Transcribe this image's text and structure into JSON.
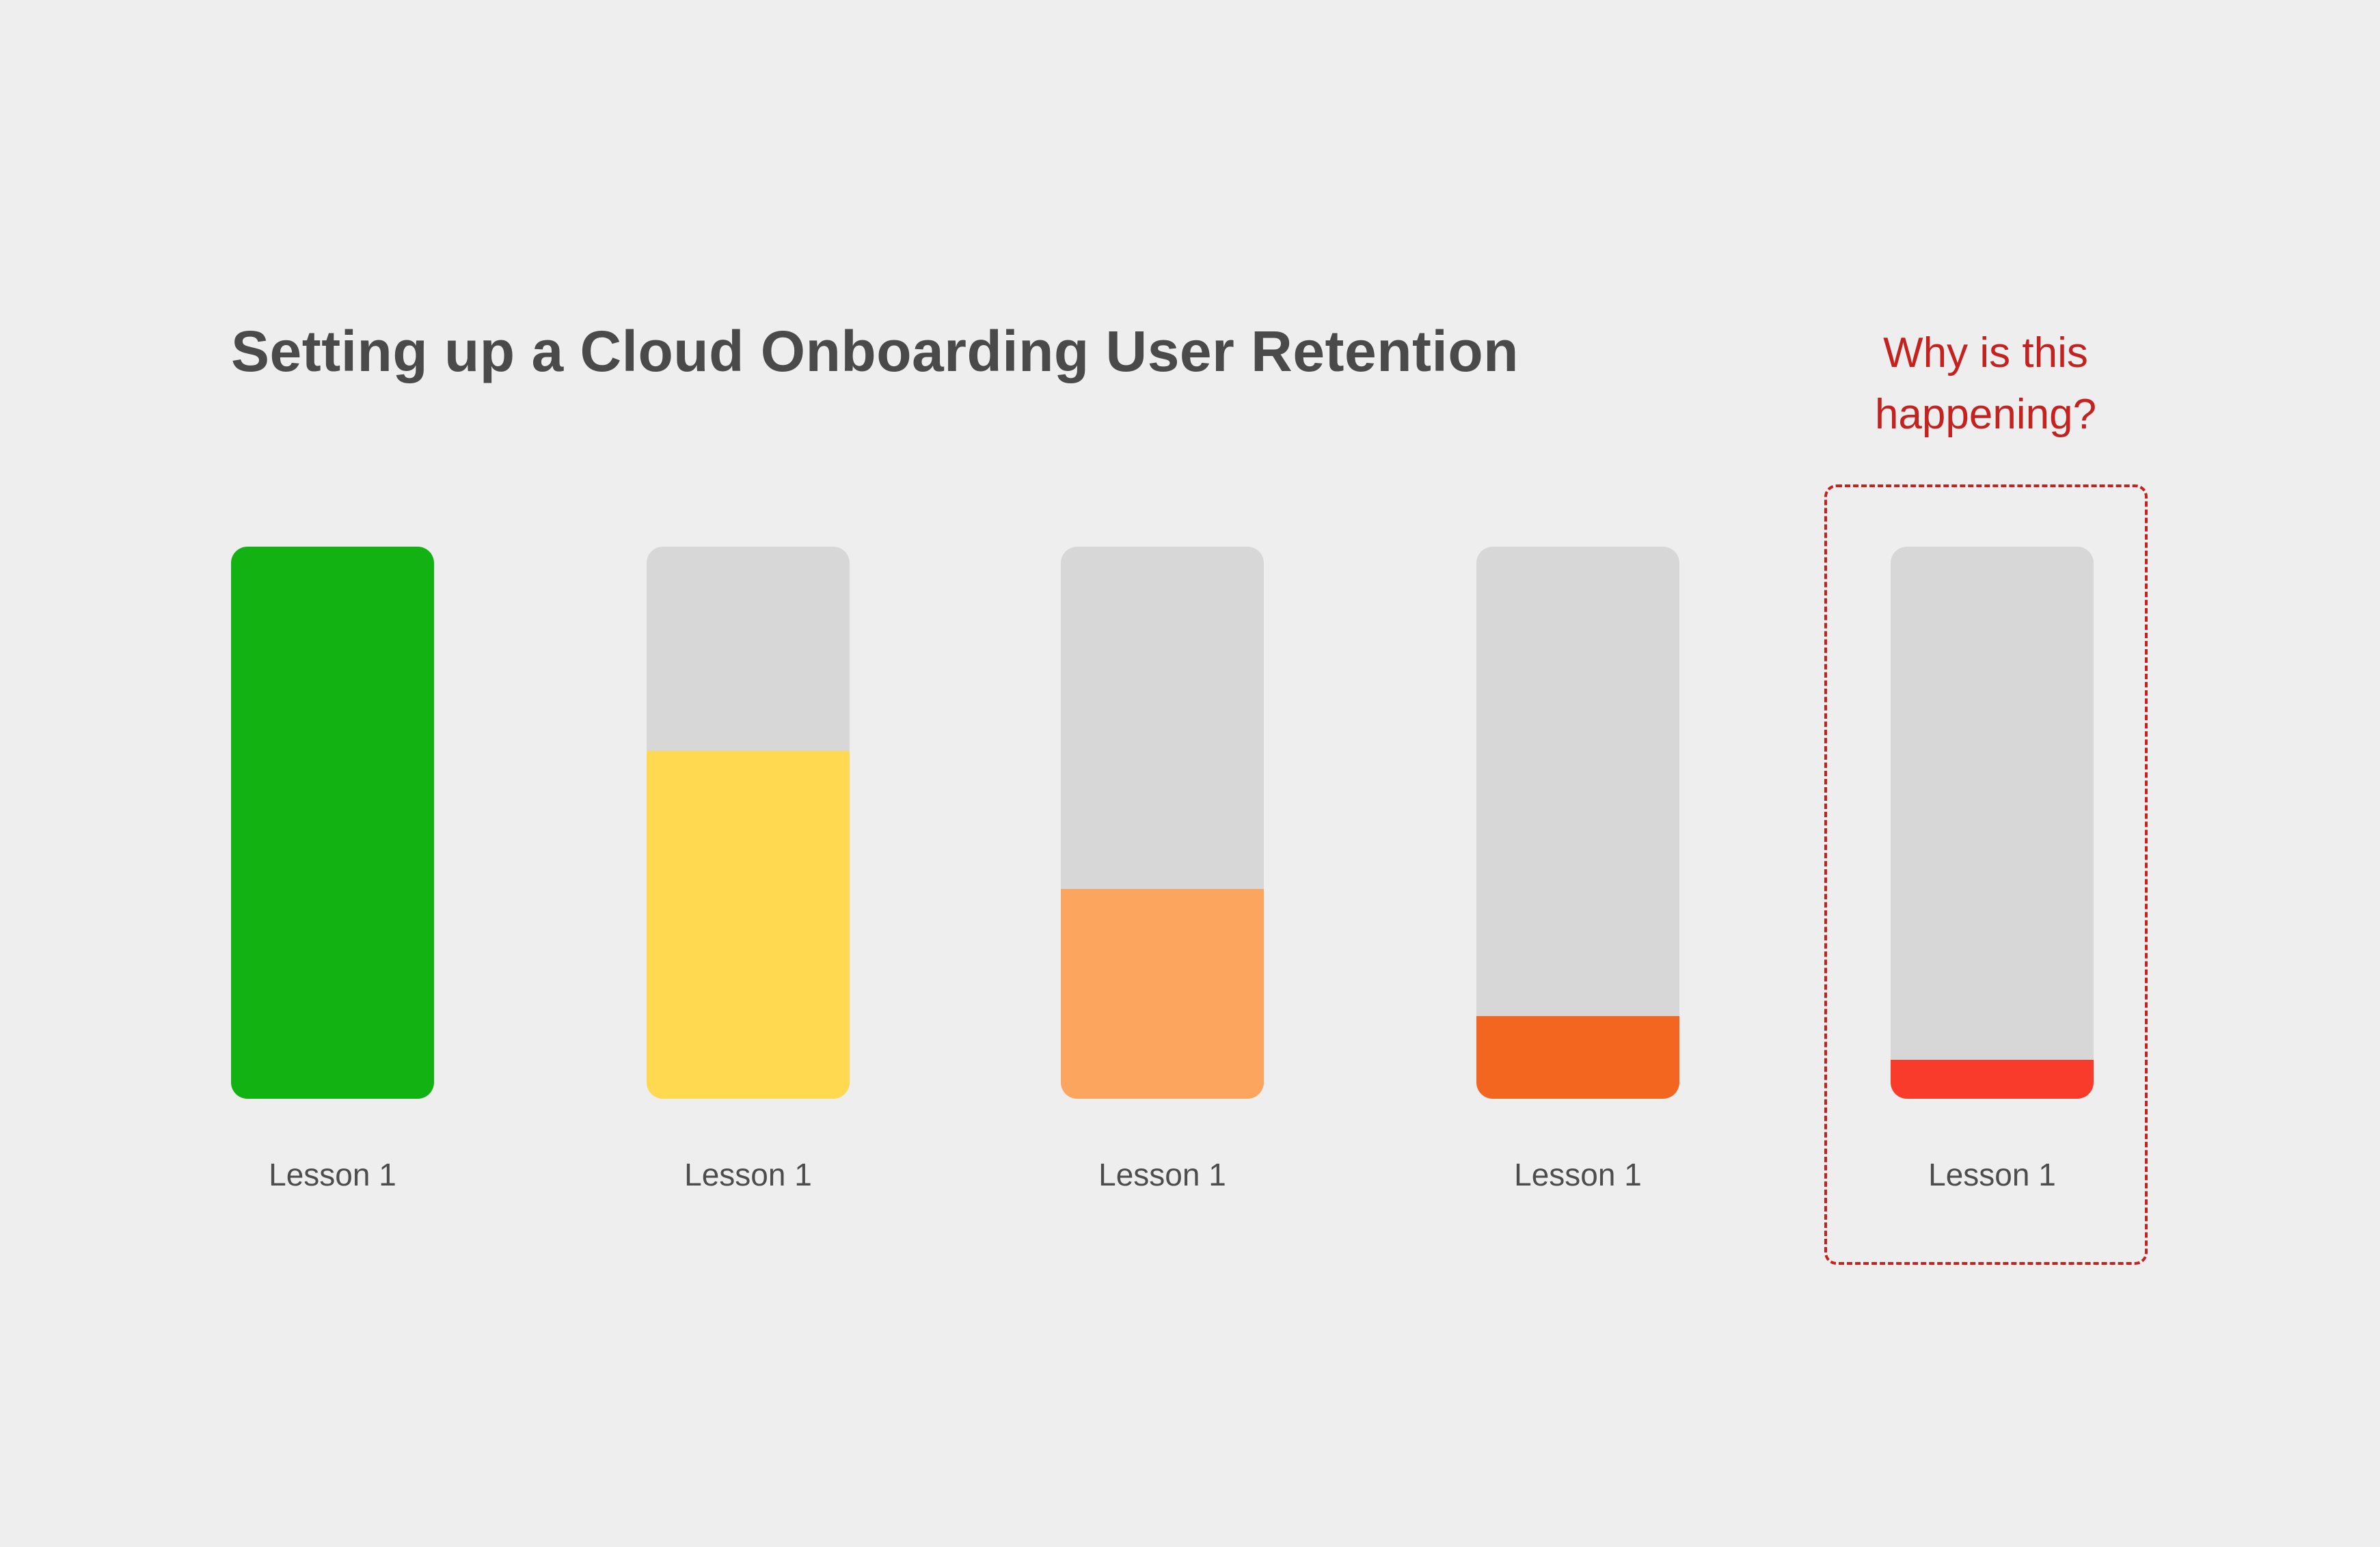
{
  "title": "Setting up a Cloud Onboarding User Retention",
  "annotation": {
    "line1": "Why is this",
    "line2": "happening?",
    "color": "#c5221f"
  },
  "colors": {
    "background": "#eeeeee",
    "track": "#d7d7d7",
    "title_text": "#4a4a4a",
    "label_text": "#4d4d4d",
    "highlight_border": "#c5221f"
  },
  "chart_data": {
    "type": "bar",
    "title": "Setting up a Cloud Onboarding User Retention",
    "categories": [
      "Lesson 1",
      "Lesson 1",
      "Lesson 1",
      "Lesson 1",
      "Lesson 1"
    ],
    "values": [
      100,
      63,
      38,
      15,
      7
    ],
    "unit": "percent_filled",
    "ylim": [
      0,
      100
    ],
    "grid": false,
    "legend": false,
    "annotation": "Why is this happening?",
    "annotation_target_index": 4,
    "track_color": "#d7d7d7",
    "bars": [
      {
        "label": "Lesson 1",
        "fill_percent": 100,
        "color": "#12b212",
        "highlighted": false
      },
      {
        "label": "Lesson 1",
        "fill_percent": 63,
        "color": "#ffd950",
        "highlighted": false
      },
      {
        "label": "Lesson 1",
        "fill_percent": 38,
        "color": "#fba55f",
        "highlighted": false
      },
      {
        "label": "Lesson 1",
        "fill_percent": 15,
        "color": "#f3661f",
        "highlighted": false
      },
      {
        "label": "Lesson 1",
        "fill_percent": 7,
        "color": "#f93b2c",
        "highlighted": true
      }
    ]
  }
}
